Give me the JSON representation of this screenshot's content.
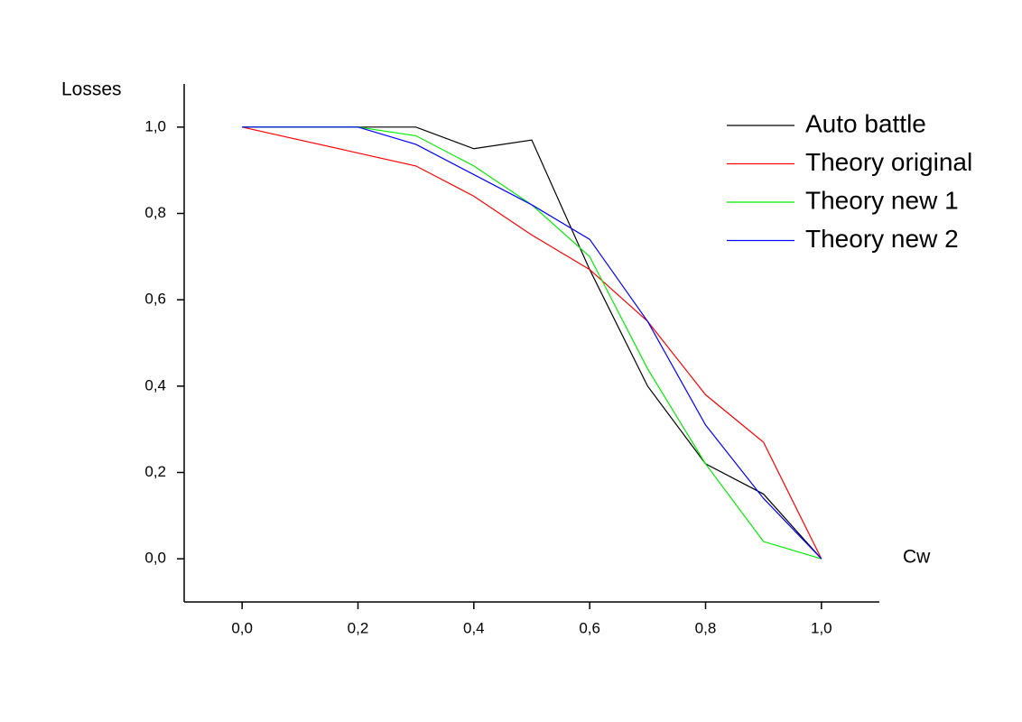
{
  "chart_data": {
    "type": "line",
    "x_label": "Cw",
    "y_label": "Losses",
    "x": [
      0,
      0.1,
      0.2,
      0.3,
      0.4,
      0.5,
      0.6,
      0.7,
      0.8,
      0.9,
      1.0
    ],
    "series": [
      {
        "name": "Auto battle",
        "color": "#000000",
        "values": [
          1.0,
          1.0,
          1.0,
          1.0,
          0.95,
          0.97,
          0.67,
          0.4,
          0.22,
          0.15,
          0
        ]
      },
      {
        "name": "Theory original",
        "color": "#ff0000",
        "values": [
          1.0,
          0.97,
          0.94,
          0.91,
          0.84,
          0.75,
          0.67,
          0.55,
          0.38,
          0.27,
          0
        ]
      },
      {
        "name": "Theory new 1",
        "color": "#00ee00",
        "values": [
          1.0,
          1.0,
          1.0,
          0.98,
          0.91,
          0.82,
          0.7,
          0.44,
          0.22,
          0.04,
          0
        ]
      },
      {
        "name": "Theory new 2",
        "color": "#0000ff",
        "values": [
          1.0,
          1.0,
          1.0,
          0.96,
          0.89,
          0.82,
          0.74,
          0.55,
          0.31,
          0.14,
          0
        ]
      }
    ],
    "xlim": [
      -0.1,
      1.1
    ],
    "ylim": [
      -0.1,
      1.1
    ],
    "xticks": [
      {
        "value": 0,
        "label": "0,0"
      },
      {
        "value": 0.2,
        "label": "0,2"
      },
      {
        "value": 0.4,
        "label": "0,4"
      },
      {
        "value": 0.6,
        "label": "0,6"
      },
      {
        "value": 0.8,
        "label": "0,8"
      },
      {
        "value": 1.0,
        "label": "1,0"
      }
    ],
    "yticks": [
      {
        "value": 0,
        "label": "0,0"
      },
      {
        "value": 0.2,
        "label": "0,2"
      },
      {
        "value": 0.4,
        "label": "0,4"
      },
      {
        "value": 0.6,
        "label": "0,6"
      },
      {
        "value": 0.8,
        "label": "0,8"
      },
      {
        "value": 1.0,
        "label": "1,0"
      }
    ],
    "legend": "upper right"
  }
}
